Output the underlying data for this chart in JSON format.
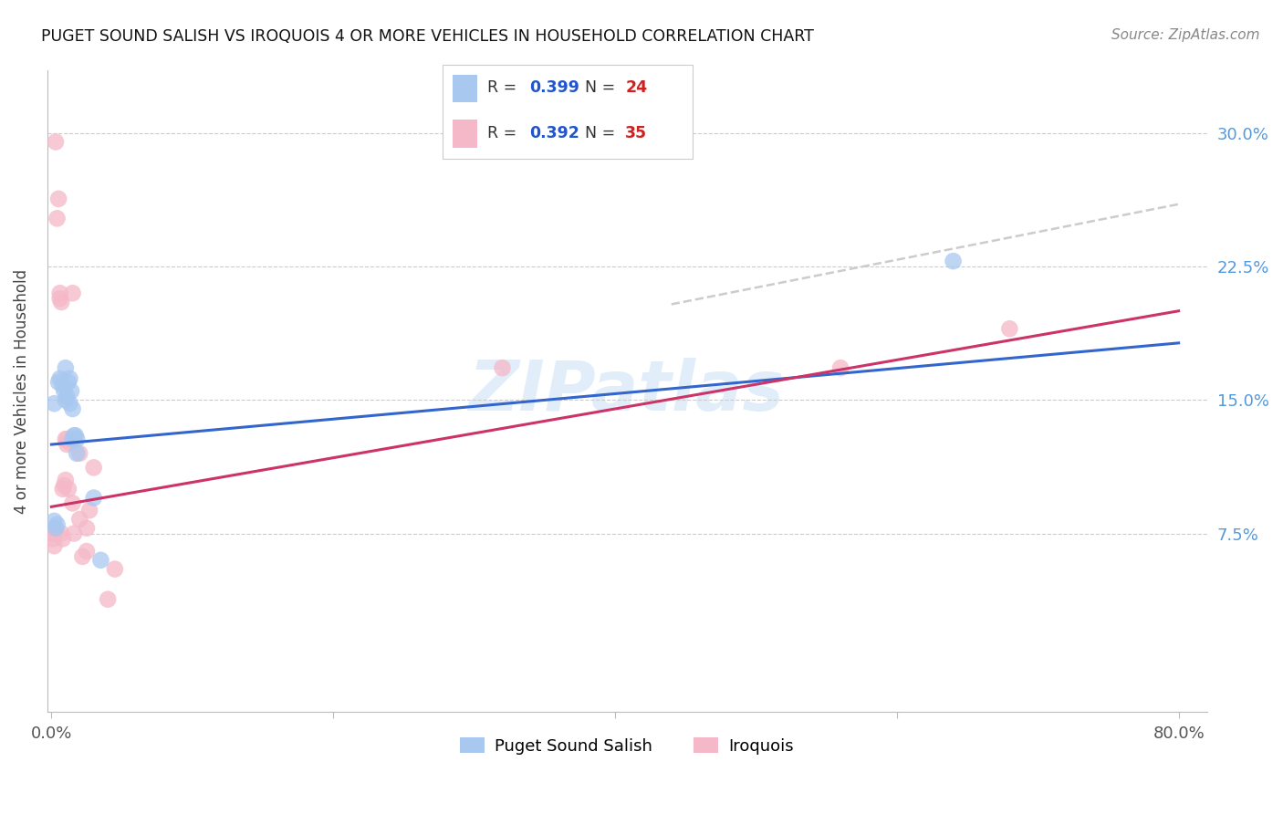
{
  "title": "PUGET SOUND SALISH VS IROQUOIS 4 OR MORE VEHICLES IN HOUSEHOLD CORRELATION CHART",
  "source": "Source: ZipAtlas.com",
  "ylabel": "4 or more Vehicles in Household",
  "ytick_labels": [
    "7.5%",
    "15.0%",
    "22.5%",
    "30.0%"
  ],
  "ytick_values": [
    0.075,
    0.15,
    0.225,
    0.3
  ],
  "xlim": [
    -0.003,
    0.82
  ],
  "ylim": [
    -0.025,
    0.335
  ],
  "blue_color": "#a8c8f0",
  "pink_color": "#f5b8c8",
  "blue_line_color": "#3366cc",
  "pink_line_color": "#cc3366",
  "gray_dash_color": "#cccccc",
  "legend_r_color": "#2255cc",
  "legend_n_color": "#cc2222",
  "watermark": "ZIPatlas",
  "blue_r": "0.399",
  "blue_n": "24",
  "pink_r": "0.392",
  "pink_n": "35",
  "blue_points": [
    [
      0.002,
      0.148
    ],
    [
      0.005,
      0.16
    ],
    [
      0.006,
      0.162
    ],
    [
      0.008,
      0.158
    ],
    [
      0.009,
      0.155
    ],
    [
      0.01,
      0.168
    ],
    [
      0.01,
      0.15
    ],
    [
      0.011,
      0.152
    ],
    [
      0.012,
      0.16
    ],
    [
      0.013,
      0.162
    ],
    [
      0.013,
      0.148
    ],
    [
      0.014,
      0.155
    ],
    [
      0.015,
      0.145
    ],
    [
      0.015,
      0.128
    ],
    [
      0.016,
      0.13
    ],
    [
      0.017,
      0.13
    ],
    [
      0.018,
      0.128
    ],
    [
      0.018,
      0.12
    ],
    [
      0.002,
      0.082
    ],
    [
      0.003,
      0.078
    ],
    [
      0.004,
      0.08
    ],
    [
      0.03,
      0.095
    ],
    [
      0.035,
      0.06
    ],
    [
      0.64,
      0.228
    ]
  ],
  "pink_points": [
    [
      0.001,
      0.072
    ],
    [
      0.002,
      0.068
    ],
    [
      0.002,
      0.075
    ],
    [
      0.002,
      0.075
    ],
    [
      0.003,
      0.295
    ],
    [
      0.004,
      0.252
    ],
    [
      0.005,
      0.263
    ],
    [
      0.006,
      0.207
    ],
    [
      0.006,
      0.21
    ],
    [
      0.007,
      0.205
    ],
    [
      0.007,
      0.075
    ],
    [
      0.008,
      0.072
    ],
    [
      0.008,
      0.1
    ],
    [
      0.009,
      0.102
    ],
    [
      0.01,
      0.105
    ],
    [
      0.01,
      0.128
    ],
    [
      0.011,
      0.128
    ],
    [
      0.011,
      0.125
    ],
    [
      0.012,
      0.1
    ],
    [
      0.013,
      0.126
    ],
    [
      0.015,
      0.21
    ],
    [
      0.015,
      0.092
    ],
    [
      0.016,
      0.075
    ],
    [
      0.02,
      0.12
    ],
    [
      0.02,
      0.083
    ],
    [
      0.022,
      0.062
    ],
    [
      0.025,
      0.078
    ],
    [
      0.025,
      0.065
    ],
    [
      0.027,
      0.088
    ],
    [
      0.03,
      0.112
    ],
    [
      0.04,
      0.038
    ],
    [
      0.045,
      0.055
    ],
    [
      0.32,
      0.168
    ],
    [
      0.56,
      0.168
    ],
    [
      0.68,
      0.19
    ]
  ]
}
